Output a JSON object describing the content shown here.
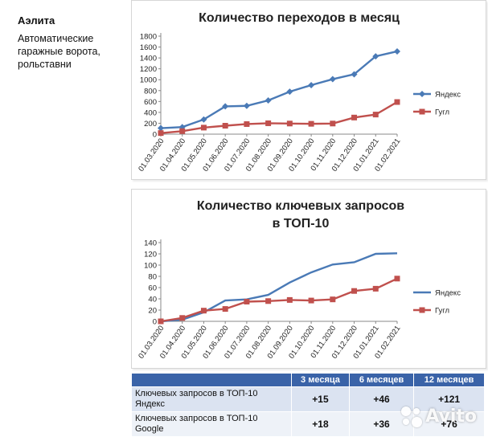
{
  "company": "Аэлита",
  "description": "Автоматические гаражные ворота, рольставни",
  "chart_data": [
    {
      "type": "line",
      "title": "Количество переходов в месяц",
      "title_lines": [
        "Количество переходов в месяц"
      ],
      "categories": [
        "01.03.2020",
        "01.04.2020",
        "01.05.2020",
        "01.06.2020",
        "01.07.2020",
        "01.08.2020",
        "01.09.2020",
        "01.10.2020",
        "01.11.2020",
        "01.12.2020",
        "01.01.2021",
        "01.02.2021"
      ],
      "series": [
        {
          "name": "Яндекс",
          "color": "#4a7ab6",
          "marker": "diamond",
          "values": [
            110,
            130,
            270,
            510,
            520,
            620,
            780,
            900,
            1010,
            1100,
            1430,
            1520
          ]
        },
        {
          "name": "Гугл",
          "color": "#c0504d",
          "marker": "square",
          "values": [
            20,
            55,
            120,
            155,
            185,
            200,
            195,
            190,
            195,
            305,
            360,
            590
          ]
        }
      ],
      "ylim": [
        0,
        1800
      ],
      "yticks": [
        0,
        200,
        400,
        600,
        800,
        1000,
        1200,
        1400,
        1600,
        1800
      ],
      "grid": false,
      "legend": "right"
    },
    {
      "type": "line",
      "title": "Количество ключевых запросов в ТОП-10",
      "title_lines": [
        "Количество ключевых запросов",
        "в ТОП-10"
      ],
      "categories": [
        "01.03.2020",
        "01.04.2020",
        "01.05.2020",
        "01.06.2020",
        "01.07.2020",
        "01.08.2020",
        "01.09.2020",
        "01.10.2020",
        "01.11.2020",
        "01.12.2020",
        "01.01.2021",
        "01.02.2021"
      ],
      "series": [
        {
          "name": "Яндекс",
          "color": "#4a7ab6",
          "marker": "none",
          "values": [
            0,
            3,
            16,
            37,
            39,
            47,
            69,
            87,
            101,
            105,
            120,
            121
          ]
        },
        {
          "name": "Гугл",
          "color": "#c0504d",
          "marker": "square",
          "values": [
            0,
            6,
            19,
            22,
            35,
            36,
            38,
            37,
            39,
            54,
            58,
            76
          ]
        }
      ],
      "ylim": [
        0,
        140
      ],
      "yticks": [
        0,
        20,
        40,
        60,
        80,
        100,
        120,
        140
      ],
      "grid": false,
      "legend": "right"
    }
  ],
  "summary": {
    "headers": [
      "",
      "3 месяца",
      "6 месяцев",
      "12 месяцев"
    ],
    "rows": [
      {
        "label": "Ключевых запросов в ТОП-10 Яндекс",
        "values": [
          "+15",
          "+46",
          "+121"
        ]
      },
      {
        "label": "Ключевых запросов в ТОП-10 Google",
        "values": [
          "+18",
          "+36",
          "+76"
        ]
      }
    ]
  },
  "watermark": "Avito"
}
